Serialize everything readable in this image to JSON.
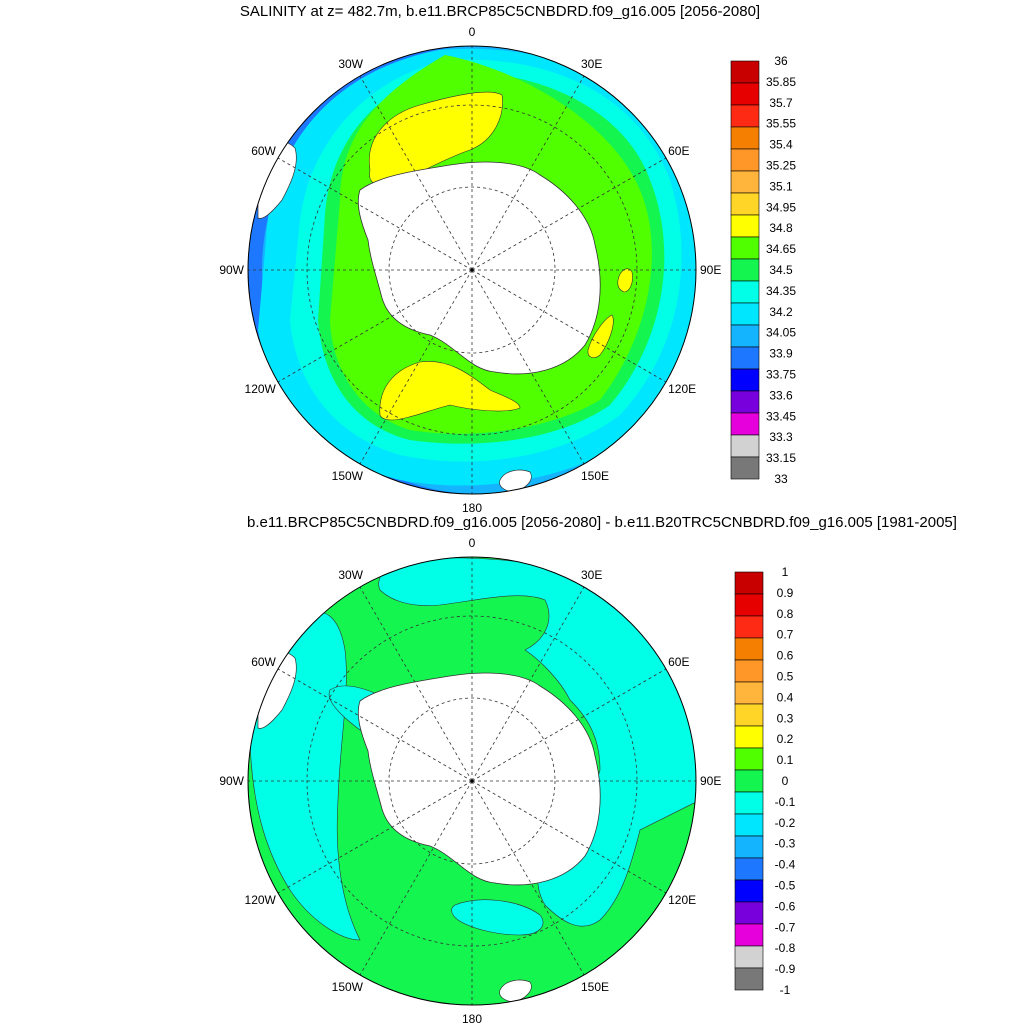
{
  "panel_top": {
    "title": "SALINITY at z= 482.7m, b.e11.BRCP85C5CNBDRD.f09_g16.005 [2056-2080]",
    "longitude_labels": [
      "0",
      "30E",
      "60E",
      "90E",
      "120E",
      "150E",
      "180",
      "150W",
      "120W",
      "90W",
      "60W",
      "30W"
    ],
    "colorbar": {
      "labels": [
        "36",
        "35.85",
        "35.7",
        "35.55",
        "35.4",
        "35.25",
        "35.1",
        "34.95",
        "34.8",
        "34.65",
        "34.5",
        "34.35",
        "34.2",
        "34.05",
        "33.9",
        "33.75",
        "33.6",
        "33.45",
        "33.3",
        "33.15",
        "33"
      ],
      "colors": [
        "#c80000",
        "#e60000",
        "#ff2a14",
        "#f57f00",
        "#ff9628",
        "#ffb43c",
        "#ffd528",
        "#ffff00",
        "#50ff00",
        "#14f550",
        "#00ffe6",
        "#00e6ff",
        "#14b4ff",
        "#1e78ff",
        "#0000ff",
        "#7800dc",
        "#e600dc",
        "#d2d2d2",
        "#787878"
      ]
    }
  },
  "panel_bottom": {
    "title": "b.e11.BRCP85C5CNBDRD.f09_g16.005 [2056-2080] - b.e11.B20TRC5CNBDRD.f09_g16.005 [1981-2005]",
    "longitude_labels": [
      "0",
      "30E",
      "60E",
      "90E",
      "120E",
      "150E",
      "180",
      "150W",
      "120W",
      "90W",
      "60W",
      "30W"
    ],
    "colorbar": {
      "labels": [
        "1",
        "0.9",
        "0.8",
        "0.7",
        "0.6",
        "0.5",
        "0.4",
        "0.3",
        "0.2",
        "0.1",
        "0",
        "-0.1",
        "-0.2",
        "-0.3",
        "-0.4",
        "-0.5",
        "-0.6",
        "-0.7",
        "-0.8",
        "-0.9",
        "-1"
      ],
      "colors": [
        "#c80000",
        "#e60000",
        "#ff2a14",
        "#f57f00",
        "#ff9628",
        "#ffb43c",
        "#ffd528",
        "#ffff00",
        "#50ff00",
        "#14f550",
        "#00ffe6",
        "#00e6ff",
        "#14b4ff",
        "#1e78ff",
        "#0000ff",
        "#7800dc",
        "#e600dc",
        "#d2d2d2",
        "#787878"
      ]
    }
  }
}
